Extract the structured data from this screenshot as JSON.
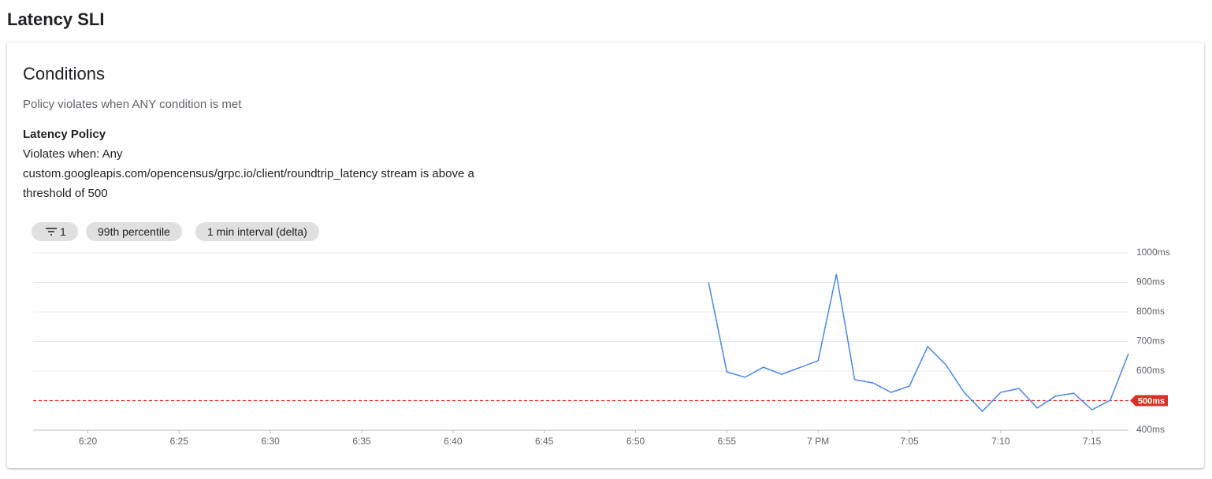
{
  "header": {
    "title": "Latency SLI"
  },
  "card": {
    "title": "Conditions",
    "subtitle": "Policy violates when ANY condition is met",
    "policy_name": "Latency Policy",
    "policy_lines": [
      "Violates when: Any",
      "custom.googleapis.com/opencensus/grpc.io/client/roundtrip_latency stream is above a",
      "threshold of 500"
    ],
    "chips": [
      "1",
      "99th percentile",
      "1 min interval (delta)"
    ]
  },
  "chart_data": {
    "type": "line",
    "x": [
      "6:54",
      "6:55",
      "6:56",
      "6:57",
      "6:58",
      "6:59",
      "7:00",
      "7:01",
      "7:02",
      "7:03",
      "7:04",
      "7:05",
      "7:06",
      "7:07",
      "7:08",
      "7:09",
      "7:10",
      "7:11",
      "7:12",
      "7:13",
      "7:14",
      "7:15",
      "7:16",
      "7:17"
    ],
    "series": [
      {
        "name": "roundtrip_latency",
        "color": "#4a86e8",
        "values": [
          900,
          597,
          579,
          613,
          589,
          612,
          635,
          928,
          571,
          560,
          528,
          549,
          683,
          621,
          528,
          464,
          528,
          541,
          475,
          515,
          525,
          469,
          501,
          659
        ]
      }
    ],
    "xlim": [
      "6:17",
      "7:17"
    ],
    "xticks": [
      "6:20",
      "6:25",
      "6:30",
      "6:35",
      "6:40",
      "6:45",
      "6:50",
      "6:55",
      {
        "value": "7:00",
        "label": "7 PM"
      },
      "7:05",
      "7:10",
      "7:15"
    ],
    "ylim": [
      400,
      1000
    ],
    "yticks": [
      {
        "value": 400,
        "label": "400ms"
      },
      {
        "value": 500,
        "label": "500ms"
      },
      {
        "value": 600,
        "label": "600ms"
      },
      {
        "value": 700,
        "label": "700ms"
      },
      {
        "value": 800,
        "label": "800ms"
      },
      {
        "value": 900,
        "label": "900ms"
      },
      {
        "value": 1000,
        "label": "1000ms"
      }
    ],
    "threshold": {
      "value": 500,
      "label": "500ms",
      "color": "#d93025"
    },
    "grid": true
  }
}
